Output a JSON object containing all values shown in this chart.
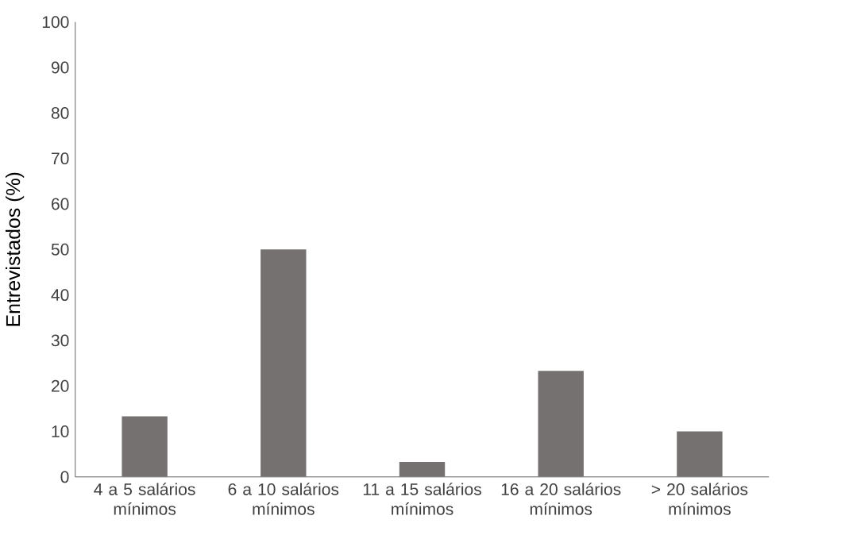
{
  "chart_data": {
    "type": "bar",
    "ylabel": "Entrevistados (%)",
    "categories": [
      "4 a 5 salários mínimos",
      "6 a 10 salários mínimos",
      "11 a 15  salários mínimos",
      "16 a 20 salários mínimos",
      "> 20 salários mínimos"
    ],
    "values": [
      13.3,
      50,
      3.3,
      23.3,
      10
    ],
    "color": "#767171",
    "ylim": [
      0,
      100
    ],
    "yticks": [
      0,
      10,
      20,
      30,
      40,
      50,
      60,
      70,
      80,
      90,
      100
    ]
  }
}
